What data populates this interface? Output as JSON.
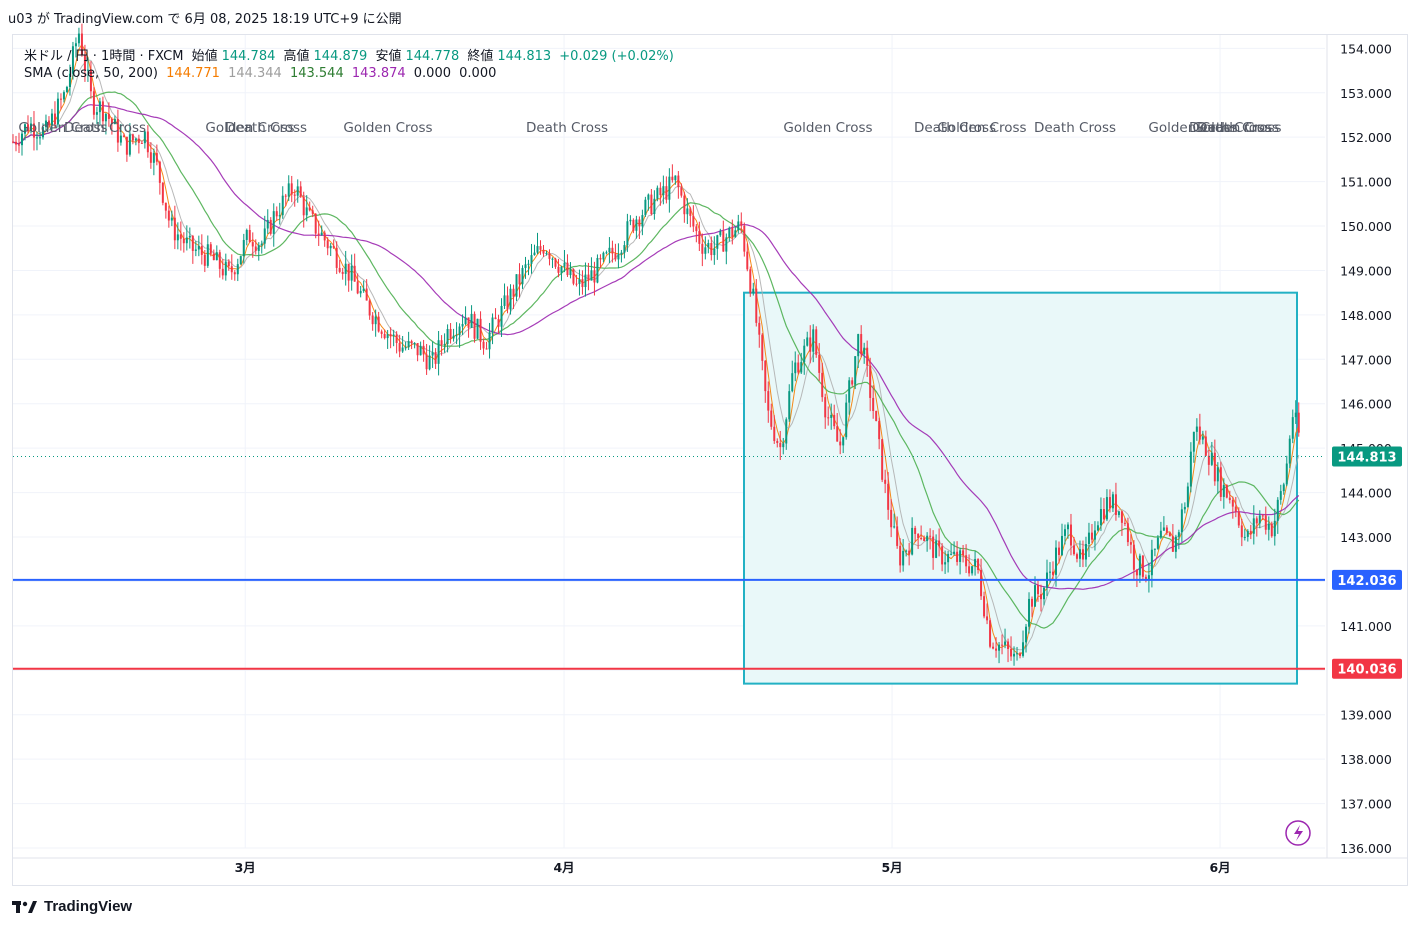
{
  "header": {
    "publish_line": "u03 が TradingView.com で 6月 08, 2025 18:19 UTC+9 に公開"
  },
  "legend": {
    "symbol": "米ドル / 円 · 1時間 · FXCM",
    "open_label": "始値",
    "open": "144.784",
    "high_label": "高値",
    "high": "144.879",
    "low_label": "安値",
    "low": "144.778",
    "close_label": "終値",
    "close": "144.813",
    "change": "+0.029 (+0.02%)",
    "sma_label": "SMA (close, 50, 200)",
    "sma_values": [
      "144.771",
      "144.344",
      "143.544",
      "143.874",
      "0.000",
      "0.000"
    ],
    "sma_colors": [
      "#f57c00",
      "#9e9e9e",
      "#2e7d32",
      "#9c27b0",
      "#131722",
      "#131722"
    ]
  },
  "footer": {
    "brand": "TradingView"
  },
  "colors": {
    "up": "#089981",
    "down": "#f23645",
    "hline_blue": "#2962ff",
    "hline_red": "#f23645",
    "box_border": "#22b1c4",
    "box_fill": "#e9f8f9",
    "sma_fast": "#f57c00",
    "sma_mid": "#b0b0b0",
    "sma_50": "#4caf50",
    "sma_200": "#9c27b0"
  },
  "chart_data": {
    "type": "candlestick",
    "timeframe": "1h",
    "y_axis": {
      "ticks": [
        "136.000",
        "137.000",
        "138.000",
        "139.000",
        "140.000",
        "141.000",
        "142.000",
        "143.000",
        "144.000",
        "145.000",
        "146.000",
        "147.000",
        "148.000",
        "149.000",
        "150.000",
        "151.000",
        "152.000",
        "153.000",
        "154.000"
      ],
      "range": [
        136,
        154.3
      ]
    },
    "x_axis": {
      "ticks": [
        "3月",
        "4月",
        "5月",
        "6月"
      ]
    },
    "price_path": [
      [
        0,
        151.9
      ],
      [
        0.012,
        152.3
      ],
      [
        0.025,
        152.1
      ],
      [
        0.04,
        153.0
      ],
      [
        0.05,
        154.4
      ],
      [
        0.06,
        152.8
      ],
      [
        0.07,
        152.6
      ],
      [
        0.085,
        151.8
      ],
      [
        0.1,
        152.1
      ],
      [
        0.11,
        151.3
      ],
      [
        0.12,
        150.0
      ],
      [
        0.135,
        149.5
      ],
      [
        0.15,
        149.3
      ],
      [
        0.165,
        148.9
      ],
      [
        0.18,
        149.8
      ],
      [
        0.19,
        149.6
      ],
      [
        0.2,
        150.3
      ],
      [
        0.215,
        150.9
      ],
      [
        0.225,
        150.2
      ],
      [
        0.24,
        149.6
      ],
      [
        0.255,
        149.0
      ],
      [
        0.27,
        148.2
      ],
      [
        0.28,
        147.8
      ],
      [
        0.295,
        147.3
      ],
      [
        0.31,
        147.2
      ],
      [
        0.32,
        146.9
      ],
      [
        0.33,
        147.6
      ],
      [
        0.345,
        148.0
      ],
      [
        0.36,
        147.4
      ],
      [
        0.375,
        148.2
      ],
      [
        0.39,
        149.0
      ],
      [
        0.405,
        149.6
      ],
      [
        0.42,
        149.0
      ],
      [
        0.43,
        148.6
      ],
      [
        0.445,
        149.0
      ],
      [
        0.46,
        149.5
      ],
      [
        0.475,
        150.2
      ],
      [
        0.49,
        150.6
      ],
      [
        0.505,
        151.0
      ],
      [
        0.515,
        150.2
      ],
      [
        0.525,
        149.6
      ],
      [
        0.535,
        149.5
      ],
      [
        0.545,
        149.8
      ],
      [
        0.555,
        150.0
      ],
      [
        0.565,
        148.2
      ],
      [
        0.575,
        145.8
      ],
      [
        0.585,
        145.0
      ],
      [
        0.595,
        146.8
      ],
      [
        0.61,
        147.5
      ],
      [
        0.62,
        145.8
      ],
      [
        0.63,
        145.0
      ],
      [
        0.645,
        147.6
      ],
      [
        0.655,
        146.0
      ],
      [
        0.665,
        144.0
      ],
      [
        0.675,
        142.5
      ],
      [
        0.69,
        143.2
      ],
      [
        0.705,
        142.6
      ],
      [
        0.72,
        142.5
      ],
      [
        0.735,
        142.3
      ],
      [
        0.745,
        140.7
      ],
      [
        0.755,
        140.5
      ],
      [
        0.765,
        140.2
      ],
      [
        0.775,
        141.6
      ],
      [
        0.785,
        141.8
      ],
      [
        0.795,
        142.6
      ],
      [
        0.805,
        143.2
      ],
      [
        0.815,
        142.3
      ],
      [
        0.825,
        143.4
      ],
      [
        0.835,
        143.8
      ],
      [
        0.845,
        143.6
      ],
      [
        0.855,
        142.4
      ],
      [
        0.865,
        142.2
      ],
      [
        0.875,
        143.0
      ],
      [
        0.885,
        142.8
      ],
      [
        0.895,
        144.0
      ],
      [
        0.9,
        145.5
      ],
      [
        0.91,
        145.0
      ],
      [
        0.92,
        144.2
      ],
      [
        0.93,
        143.8
      ],
      [
        0.94,
        142.9
      ],
      [
        0.95,
        143.5
      ],
      [
        0.96,
        143.2
      ],
      [
        0.97,
        144.4
      ],
      [
        0.975,
        145.8
      ],
      [
        0.98,
        145.3
      ]
    ],
    "horizontal_lines": [
      {
        "price": 142.036,
        "label": "142.036",
        "color": "#2962ff"
      },
      {
        "price": 140.036,
        "label": "140.036",
        "color": "#f23645"
      }
    ],
    "current_price": {
      "price": 144.813,
      "label": "144.813",
      "color": "#089981"
    },
    "rectangle": {
      "price_top": 148.5,
      "price_bottom": 139.7
    },
    "annotations": [
      "Golden Cross",
      "Death Cross",
      "Golden Cross",
      "Death Cross",
      "Golden Cross",
      "Death Cross",
      "Golden Cross",
      "Death Cross",
      "Golden Cross",
      "Death Cross",
      "Golden Cross",
      "Death Cross",
      "Golden Cross",
      "Death Cross"
    ],
    "series": [
      {
        "name": "SMA 50"
      },
      {
        "name": "SMA 200"
      }
    ]
  }
}
